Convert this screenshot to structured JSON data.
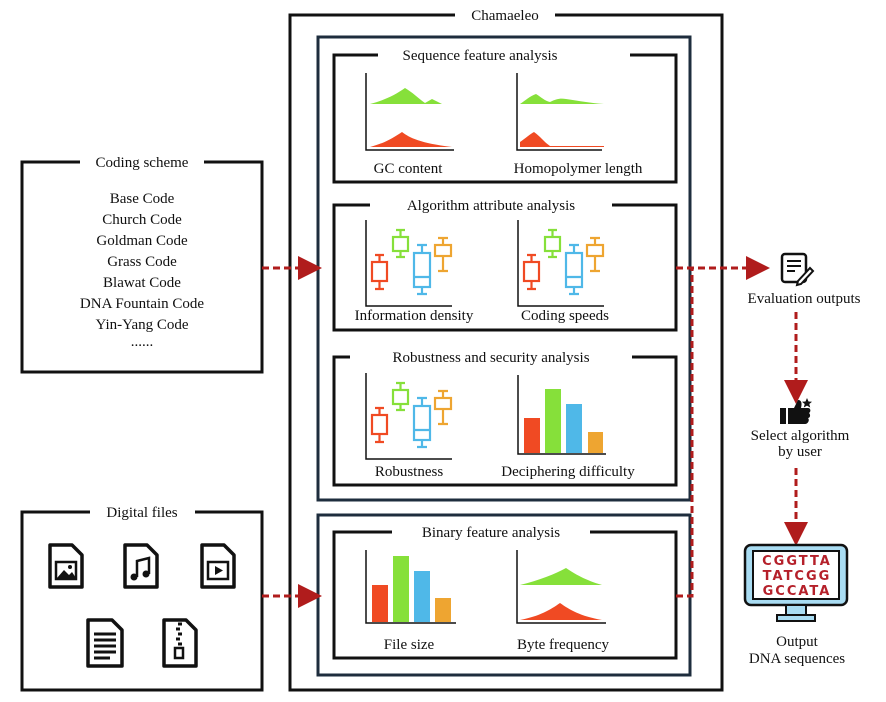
{
  "title": "Chamaeleo",
  "coding_scheme": {
    "title": "Coding scheme",
    "items": [
      "Base Code",
      "Church Code",
      "Goldman Code",
      "Grass Code",
      "Blawat Code",
      "DNA Fountain Code",
      "Yin-Yang Code",
      "......"
    ]
  },
  "digital_files": {
    "title": "Digital files"
  },
  "sections": {
    "sequence": {
      "title": "Sequence feature analysis",
      "charts": [
        "GC content",
        "Homopolymer length"
      ]
    },
    "algorithm": {
      "title": "Algorithm attribute analysis",
      "charts": [
        "Information density",
        "Coding speeds"
      ]
    },
    "robustness": {
      "title": "Robustness and security analysis",
      "charts": [
        "Robustness",
        "Deciphering difficulty"
      ]
    },
    "binary": {
      "title": "Binary feature analysis",
      "charts": [
        "File size",
        "Byte frequency"
      ]
    }
  },
  "outputs": {
    "evaluation": "Evaluation outputs",
    "select_line1": "Select algorithm",
    "select_line2": "by user",
    "output_line1": "Output",
    "output_line2": "DNA sequences",
    "dna_rows": [
      "CGGTTA",
      "TATCGG",
      "GCCATA"
    ]
  },
  "colors": {
    "red": "#f04a23",
    "green": "#86e03a",
    "blue": "#4fb8e8",
    "orange": "#eea531",
    "arrow": "#b01c1c",
    "navy": "#1e2d3d"
  }
}
